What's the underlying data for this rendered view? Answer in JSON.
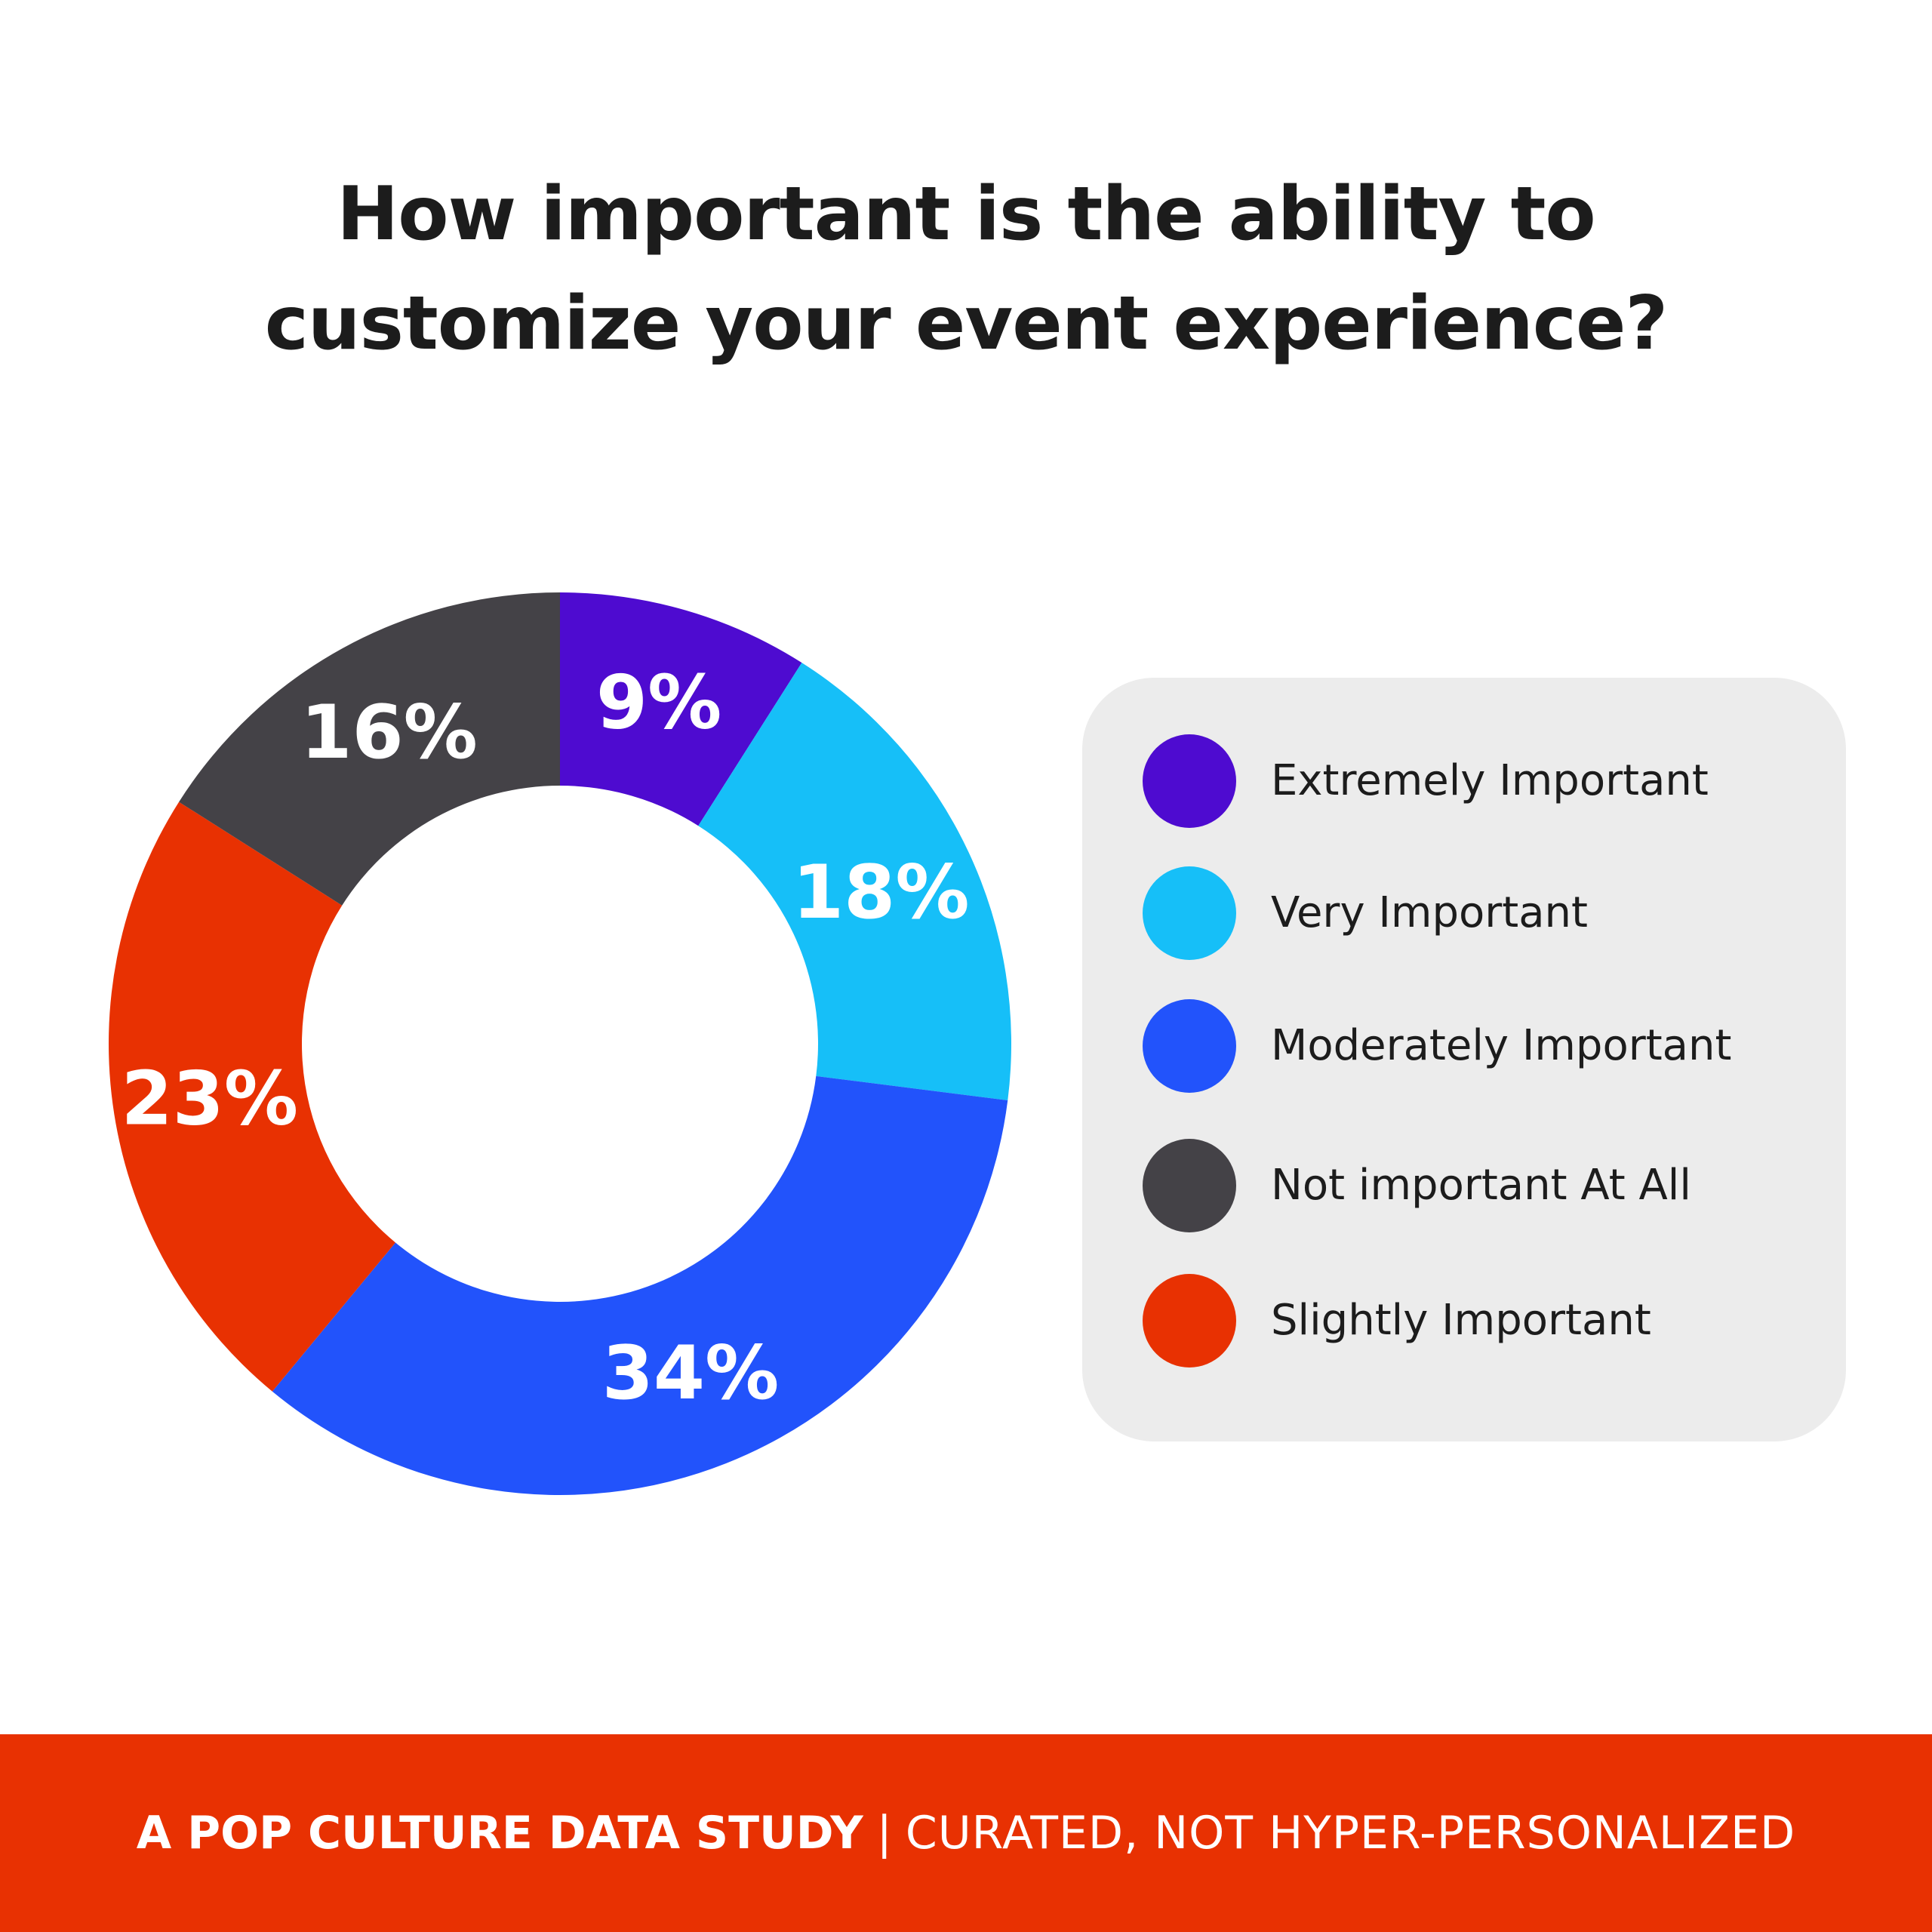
{
  "title": {
    "line1": "How important is the ability to",
    "line2": "customize your event experience?"
  },
  "chart_data": {
    "type": "pie",
    "title": "How important is the ability to customize your event experience?",
    "unit": "%",
    "slices": [
      {
        "label": "Extremely Important",
        "value": 9,
        "display": "9%",
        "color": "#4e0bd0"
      },
      {
        "label": "Very Important",
        "value": 18,
        "display": "18%",
        "color": "#16bff8"
      },
      {
        "label": "Moderately Important",
        "value": 34,
        "display": "34%",
        "color": "#2253fb"
      },
      {
        "label": "Slightly Important",
        "value": 23,
        "display": "23%",
        "color": "#e83102"
      },
      {
        "label": "Not important At All",
        "value": 16,
        "display": "16%",
        "color": "#444247"
      }
    ],
    "legend_placement": "right"
  },
  "legend": {
    "items": [
      {
        "label": "Extremely Important",
        "color": "#4e0bd0"
      },
      {
        "label": "Very Important",
        "color": "#16bff8"
      },
      {
        "label": "Moderately Important",
        "color": "#2253fb"
      },
      {
        "label": "Not important At All",
        "color": "#444247"
      },
      {
        "label": "Slightly Important",
        "color": "#e83102"
      }
    ]
  },
  "footer": {
    "strong": "A POP CULTURE DATA STUDY",
    "separator": "|",
    "light": "CURATED, NOT HYPER-PERSONALIZED",
    "background": "#e83102"
  }
}
